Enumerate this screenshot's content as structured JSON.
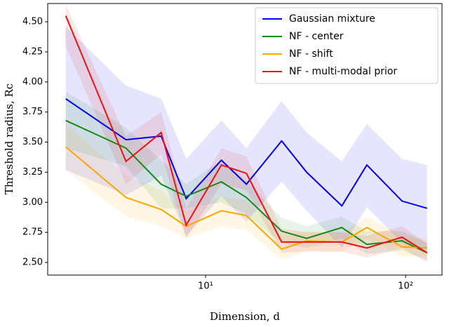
{
  "chart_data": {
    "type": "line",
    "log_x": true,
    "legend": "upper right",
    "xlabel": "Dimension, d",
    "ylabel": "Threshold radius, Rc",
    "x": [
      2,
      4,
      6,
      8,
      12,
      16,
      24,
      32,
      48,
      64,
      96,
      128
    ],
    "xlim": [
      1.625,
      152
    ],
    "xticks": [
      {
        "value": 10,
        "label": "10¹"
      },
      {
        "value": 100,
        "label": "10²"
      }
    ],
    "ylim": [
      2.395,
      4.652
    ],
    "yticks": [
      {
        "value": 2.5,
        "label": "2.50"
      },
      {
        "value": 2.75,
        "label": "2.75"
      },
      {
        "value": 3.0,
        "label": "3.00"
      },
      {
        "value": 3.25,
        "label": "3.25"
      },
      {
        "value": 3.5,
        "label": "3.50"
      },
      {
        "value": 3.75,
        "label": "3.75"
      },
      {
        "value": 4.0,
        "label": "4.00"
      },
      {
        "value": 4.25,
        "label": "4.25"
      },
      {
        "value": 4.5,
        "label": "4.50"
      }
    ],
    "series": [
      {
        "name": "Gaussian mixture",
        "color": "#0000ee",
        "values": [
          3.86,
          3.52,
          3.55,
          3.03,
          3.35,
          3.15,
          3.51,
          3.25,
          2.97,
          3.31,
          3.01,
          2.95
        ],
        "upper": [
          4.46,
          3.97,
          3.86,
          3.36,
          3.68,
          3.45,
          3.84,
          3.58,
          3.34,
          3.65,
          3.36,
          3.31
        ],
        "lower": [
          3.27,
          3.06,
          3.22,
          2.72,
          3.05,
          2.84,
          3.17,
          2.93,
          2.62,
          2.96,
          2.66,
          2.58
        ]
      },
      {
        "name": "NF - center",
        "color": "#138a13",
        "values": [
          3.68,
          3.45,
          3.15,
          3.05,
          3.17,
          3.04,
          2.76,
          2.7,
          2.79,
          2.65,
          2.68,
          2.58
        ],
        "upper": [
          3.92,
          3.62,
          3.35,
          3.15,
          3.35,
          3.18,
          2.87,
          2.8,
          2.88,
          2.76,
          2.76,
          2.66
        ],
        "lower": [
          3.45,
          3.3,
          2.95,
          2.95,
          3.0,
          2.9,
          2.66,
          2.62,
          2.7,
          2.57,
          2.6,
          2.52
        ]
      },
      {
        "name": "NF - shift",
        "color": "#ffa500",
        "values": [
          3.46,
          3.04,
          2.94,
          2.8,
          2.93,
          2.89,
          2.61,
          2.68,
          2.67,
          2.79,
          2.63,
          2.62
        ],
        "upper": [
          3.65,
          3.22,
          3.1,
          2.92,
          3.05,
          3.02,
          2.72,
          2.76,
          2.75,
          2.88,
          2.72,
          2.7
        ],
        "lower": [
          3.27,
          2.88,
          2.8,
          2.7,
          2.8,
          2.77,
          2.52,
          2.6,
          2.59,
          2.7,
          2.55,
          2.55
        ]
      },
      {
        "name": "NF - multi-modal prior",
        "color": "#ee1111",
        "values": [
          4.55,
          3.34,
          3.58,
          2.81,
          3.31,
          3.24,
          2.67,
          2.67,
          2.67,
          2.62,
          2.71,
          2.58
        ],
        "upper": [
          4.64,
          3.55,
          3.75,
          2.95,
          3.45,
          3.38,
          2.78,
          2.75,
          2.75,
          2.72,
          2.8,
          2.66
        ],
        "lower": [
          4.3,
          3.15,
          3.4,
          2.7,
          3.15,
          3.1,
          2.58,
          2.59,
          2.59,
          2.54,
          2.62,
          2.5
        ]
      }
    ]
  }
}
